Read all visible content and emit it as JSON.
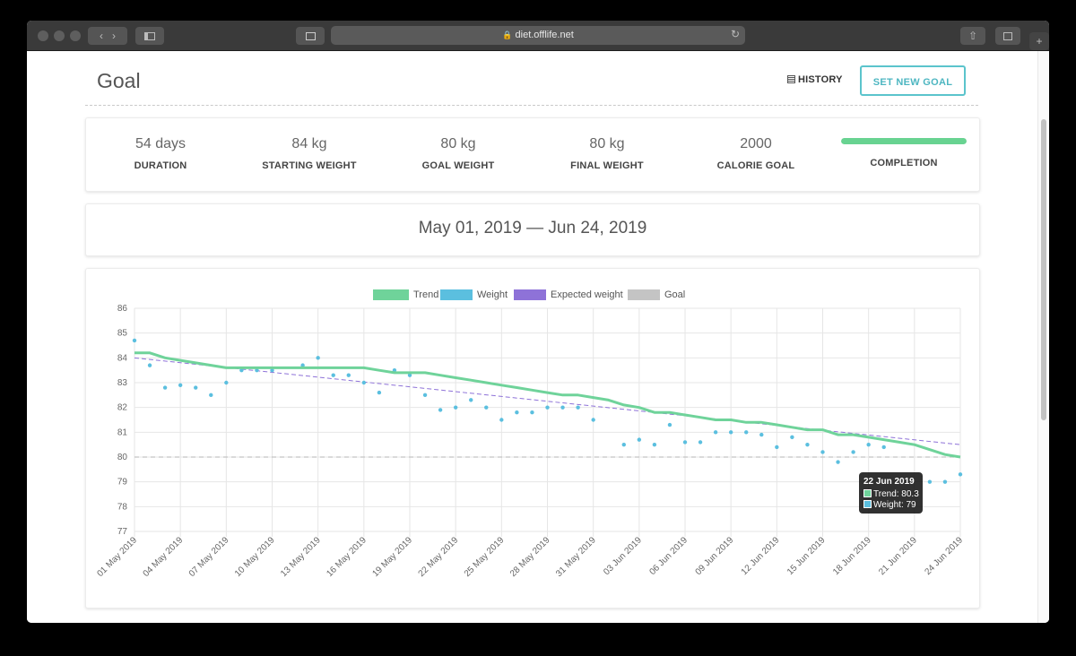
{
  "browser": {
    "url": "diet.offlife.net"
  },
  "header": {
    "title": "Goal",
    "history_label": "HISTORY",
    "set_goal_label": "SET NEW GOAL"
  },
  "stats": [
    {
      "value": "54 days",
      "label": "DURATION"
    },
    {
      "value": "84 kg",
      "label": "STARTING WEIGHT"
    },
    {
      "value": "80 kg",
      "label": "GOAL WEIGHT"
    },
    {
      "value": "80 kg",
      "label": "FINAL WEIGHT"
    },
    {
      "value": "2000",
      "label": "CALORIE GOAL"
    }
  ],
  "completion": {
    "label": "COMPLETION",
    "percent": 100
  },
  "date_range": "May 01, 2019 — Jun 24, 2019",
  "colors": {
    "trend": "#6fd39a",
    "weight": "#5bbfdf",
    "expected": "#8e72d8",
    "goal": "#c4c4c4",
    "accent": "#4db6c1"
  },
  "chart_data": {
    "type": "line",
    "legend": [
      "Trend",
      "Weight",
      "Expected weight",
      "Goal"
    ],
    "legend_position": "top",
    "grid": true,
    "ylim": [
      77,
      86
    ],
    "y_ticks": [
      "86",
      "85",
      "84",
      "83",
      "82",
      "81",
      "80",
      "79",
      "78",
      "77"
    ],
    "x_ticks": [
      "01 May 2019",
      "04 May 2019",
      "07 May 2019",
      "10 May 2019",
      "13 May 2019",
      "16 May 2019",
      "19 May 2019",
      "22 May 2019",
      "25 May 2019",
      "28 May 2019",
      "31 May 2019",
      "03 Jun 2019",
      "06 Jun 2019",
      "09 Jun 2019",
      "12 Jun 2019",
      "15 Jun 2019",
      "18 Jun 2019",
      "21 Jun 2019",
      "24 Jun 2019"
    ],
    "series": [
      {
        "name": "Trend",
        "type": "line",
        "values": [
          84.2,
          84.2,
          84.0,
          83.9,
          83.8,
          83.7,
          83.6,
          83.6,
          83.6,
          83.6,
          83.6,
          83.6,
          83.6,
          83.6,
          83.6,
          83.6,
          83.5,
          83.4,
          83.4,
          83.4,
          83.3,
          83.2,
          83.1,
          83.0,
          82.9,
          82.8,
          82.7,
          82.6,
          82.5,
          82.5,
          82.4,
          82.3,
          82.1,
          82.0,
          81.8,
          81.8,
          81.7,
          81.6,
          81.5,
          81.5,
          81.4,
          81.4,
          81.3,
          81.2,
          81.1,
          81.1,
          80.9,
          80.9,
          80.8,
          80.7,
          80.6,
          80.5,
          80.3,
          80.1,
          80.0
        ]
      },
      {
        "name": "Weight",
        "type": "scatter",
        "values": [
          84.7,
          83.7,
          82.8,
          82.9,
          82.8,
          82.5,
          83.0,
          83.5,
          83.5,
          83.5,
          null,
          83.7,
          84.0,
          83.3,
          83.3,
          83.0,
          82.6,
          83.5,
          83.3,
          82.5,
          81.9,
          82.0,
          82.3,
          82.0,
          81.5,
          81.8,
          81.8,
          82.0,
          82.0,
          82.0,
          81.5,
          null,
          80.5,
          80.7,
          80.5,
          81.3,
          80.6,
          80.6,
          81.0,
          81.0,
          81.0,
          80.9,
          80.4,
          80.8,
          80.5,
          80.2,
          79.8,
          80.2,
          80.5,
          80.4,
          null,
          null,
          79.0,
          79.0,
          79.3
        ]
      },
      {
        "name": "Expected weight",
        "type": "line",
        "style": "dashed",
        "start": 84.0,
        "end": 80.5
      },
      {
        "name": "Goal",
        "type": "line",
        "style": "dashed",
        "value": 80.0
      }
    ],
    "tooltip": {
      "title": "22 Jun 2019",
      "rows": [
        "Trend: 80.3",
        "Weight: 79"
      ]
    }
  }
}
